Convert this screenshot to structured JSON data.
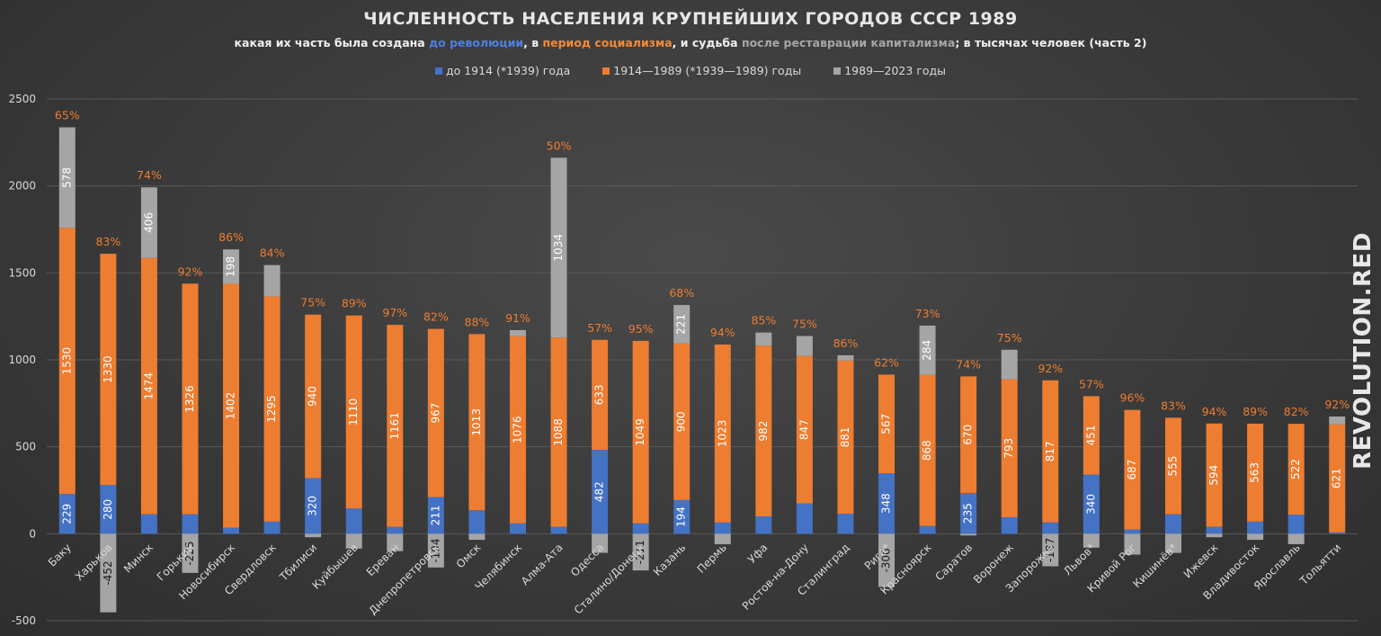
{
  "title": "ЧИСЛЕННОСТЬ НАСЕЛЕНИЯ КРУПНЕЙШИХ ГОРОДОВ СССР 1989",
  "subtitle": {
    "p1": "какая их часть была создана ",
    "p2": "до революции",
    "p3": ", в ",
    "p4": "период социализма",
    "p5": ", и судьба ",
    "p6": "после реставрации капитализма",
    "p7": "; в тысячах человек (часть 2)"
  },
  "watermark": "REVOLUTION.RED",
  "colors": {
    "pre": "#4472c4",
    "soc": "#ed7d31",
    "post": "#a5a5a5",
    "pct": "#ed7d31",
    "axis_text": "#d9d9d9",
    "grid": "#595959"
  },
  "chart_data": {
    "type": "bar",
    "stacked": true,
    "ylim": [
      -500,
      2500
    ],
    "yticks": [
      -500,
      0,
      500,
      1000,
      1500,
      2000,
      2500
    ],
    "grid": true,
    "legend_position": "top",
    "series": [
      {
        "name": "до 1914 (*1939) года",
        "color": "#4472c4"
      },
      {
        "name": "1914—1989 (*1939—1989) годы",
        "color": "#ed7d31"
      },
      {
        "name": "1989—2023 годы",
        "color": "#a5a5a5"
      }
    ],
    "categories": [
      "Баку",
      "Харьков",
      "Минск",
      "Горький",
      "Новосибирск",
      "Свердловск",
      "Тбилиси",
      "Куйбышев",
      "Ереван",
      "Днепропетровск",
      "Омск",
      "Челябинск",
      "Алма-Ата",
      "Одесса",
      "Сталино/Донецк",
      "Казань",
      "Пермь",
      "Уфа",
      "Ростов-на-Дону",
      "Сталинград",
      "Рига*",
      "Красноярск",
      "Саратов",
      "Воронеж",
      "Запорожье",
      "Львов*",
      "Кривой Рог",
      "Кишинёв*",
      "Ижевск",
      "Владивосток",
      "Ярославль",
      "Тольятти"
    ],
    "pre_1914": [
      229,
      280,
      112,
      112,
      35,
      70,
      320,
      145,
      40,
      211,
      135,
      60,
      40,
      482,
      60,
      194,
      65,
      100,
      175,
      115,
      348,
      45,
      235,
      95,
      65,
      340,
      25,
      112,
      40,
      70,
      110,
      8
    ],
    "pre_1914_labels": [
      "229",
      "280",
      "",
      "",
      "",
      "",
      "320",
      "",
      "",
      "211",
      "",
      "",
      "",
      "482",
      "",
      "194",
      "",
      "",
      "",
      "",
      "348",
      "",
      "235",
      "",
      "",
      "340",
      "",
      "",
      "",
      "",
      "",
      ""
    ],
    "socialism": [
      1530,
      1330,
      1474,
      1326,
      1402,
      1295,
      940,
      1110,
      1161,
      967,
      1013,
      1076,
      1088,
      633,
      1049,
      900,
      1023,
      982,
      847,
      881,
      567,
      868,
      670,
      793,
      817,
      451,
      687,
      555,
      594,
      563,
      522,
      621
    ],
    "socialism_labels": [
      "1530",
      "1330",
      "1474",
      "1326",
      "1402",
      "1295",
      "940",
      "1110",
      "1161",
      "967",
      "1013",
      "1076",
      "1088",
      "633",
      "1049",
      "900",
      "1023",
      "982",
      "847",
      "881",
      "567",
      "868",
      "670",
      "793",
      "817",
      "451",
      "687",
      "555",
      "594",
      "563",
      "522",
      "621"
    ],
    "post_1989": [
      578,
      -452,
      406,
      -225,
      198,
      180,
      -20,
      -85,
      -100,
      -194,
      -35,
      35,
      1034,
      -110,
      -211,
      221,
      -60,
      75,
      115,
      30,
      -306,
      284,
      -10,
      170,
      -187,
      -80,
      -120,
      -110,
      -20,
      -35,
      -60,
      45
    ],
    "post_1989_labels": [
      "578",
      "-452",
      "406",
      "-225",
      "198",
      "",
      "",
      "",
      "",
      "-194",
      "",
      "",
      "1034",
      "",
      "-211",
      "221",
      "",
      "",
      "",
      "",
      "-306",
      "284",
      "",
      "",
      "-187",
      "",
      "",
      "",
      "",
      "",
      "",
      ""
    ],
    "percent_labels": [
      "65%",
      "83%",
      "74%",
      "92%",
      "86%",
      "84%",
      "75%",
      "89%",
      "97%",
      "82%",
      "88%",
      "91%",
      "50%",
      "57%",
      "95%",
      "68%",
      "94%",
      "85%",
      "75%",
      "86%",
      "62%",
      "73%",
      "74%",
      "75%",
      "92%",
      "57%",
      "96%",
      "83%",
      "94%",
      "89%",
      "82%",
      "92%"
    ]
  }
}
